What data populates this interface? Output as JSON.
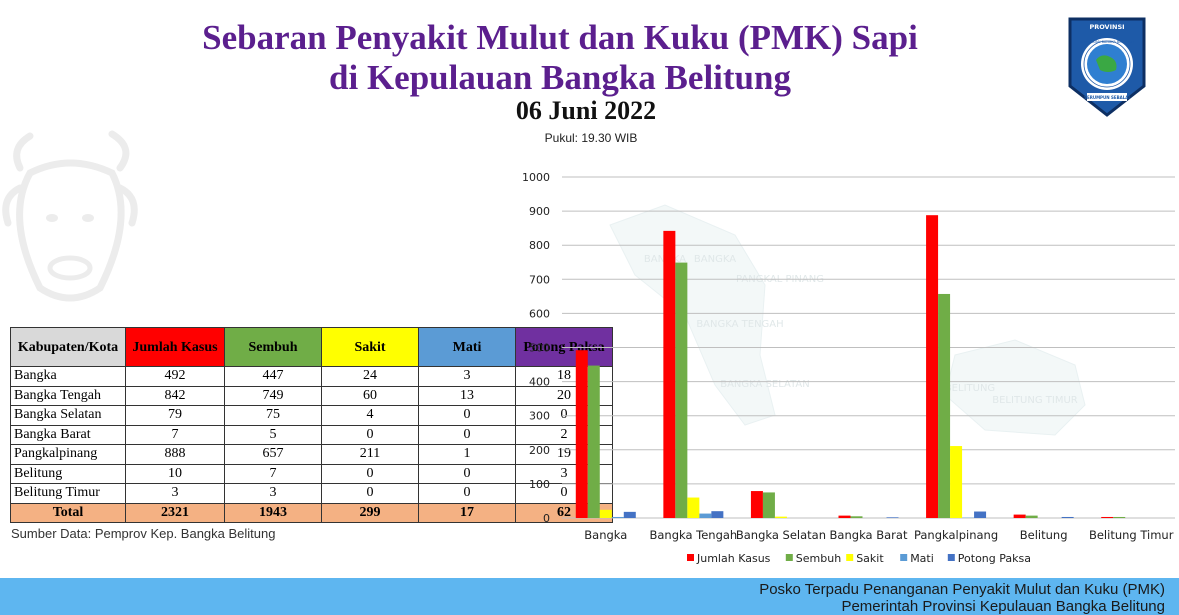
{
  "header": {
    "title_line1": "Sebaran Penyakit Mulut dan Kuku (PMK) Sapi",
    "title_line2": "di Kepulauan Bangka Belitung",
    "date": "06 Juni 2022",
    "time": "Pukul: 19.30 WIB"
  },
  "logo": {
    "top_text": "PROVINSI",
    "ring_text": "KEPULAUAN BANGKA BELITUNG",
    "motto": "SERUMPUN SEBALAI"
  },
  "table": {
    "headers": [
      "Kabupaten/Kota",
      "Jumlah Kasus",
      "Sembuh",
      "Sakit",
      "Mati",
      "Potong Paksa"
    ],
    "rows": [
      [
        "Bangka",
        "492",
        "447",
        "24",
        "3",
        "18"
      ],
      [
        "Bangka Tengah",
        "842",
        "749",
        "60",
        "13",
        "20"
      ],
      [
        "Bangka Selatan",
        "79",
        "75",
        "4",
        "0",
        "0"
      ],
      [
        "Bangka Barat",
        "7",
        "5",
        "0",
        "0",
        "2"
      ],
      [
        "Pangkalpinang",
        "888",
        "657",
        "211",
        "1",
        "19"
      ],
      [
        "Belitung",
        "10",
        "7",
        "0",
        "0",
        "3"
      ],
      [
        "Belitung Timur",
        "3",
        "3",
        "0",
        "0",
        "0"
      ]
    ],
    "total": [
      "Total",
      "2321",
      "1943",
      "299",
      "17",
      "62"
    ]
  },
  "source": "Sumber Data: Pemprov Kep. Bangka Belitung",
  "footer": {
    "line1": "Posko Terpadu Penanganan Penyakit Mulut dan Kuku (PMK)",
    "line2": "Pemerintah Provinsi Kepulauan Bangka Belitung"
  },
  "map_labels": [
    "BANGKA",
    "BANGKA",
    "PANGKAL PINANG",
    "BANGKA TENGAH",
    "BANGKA SELATAN",
    "BELITUNG",
    "BELITUNG TIMUR"
  ],
  "chart_data": {
    "type": "bar",
    "categories": [
      "Bangka",
      "Bangka Tengah",
      "Bangka Selatan",
      "Bangka Barat",
      "Pangkalpinang",
      "Belitung",
      "Belitung Timur"
    ],
    "series": [
      {
        "name": "Jumlah Kasus",
        "color": "#ff0000",
        "values": [
          492,
          842,
          79,
          7,
          888,
          10,
          3
        ]
      },
      {
        "name": "Sembuh",
        "color": "#70ad47",
        "values": [
          447,
          749,
          75,
          5,
          657,
          7,
          3
        ]
      },
      {
        "name": "Sakit",
        "color": "#ffff00",
        "values": [
          24,
          60,
          4,
          0,
          211,
          0,
          0
        ]
      },
      {
        "name": "Mati",
        "color": "#5b9bd5",
        "values": [
          3,
          13,
          0,
          0,
          1,
          0,
          0
        ]
      },
      {
        "name": "Potong Paksa",
        "color": "#4472c4",
        "values": [
          18,
          20,
          0,
          2,
          19,
          3,
          0
        ]
      }
    ],
    "yticks": [
      "0",
      "100",
      "200",
      "300",
      "400",
      "500",
      "600",
      "700",
      "800",
      "900",
      "1000"
    ],
    "ylim": [
      0,
      1000
    ],
    "grid": true,
    "legend": "bottom"
  }
}
